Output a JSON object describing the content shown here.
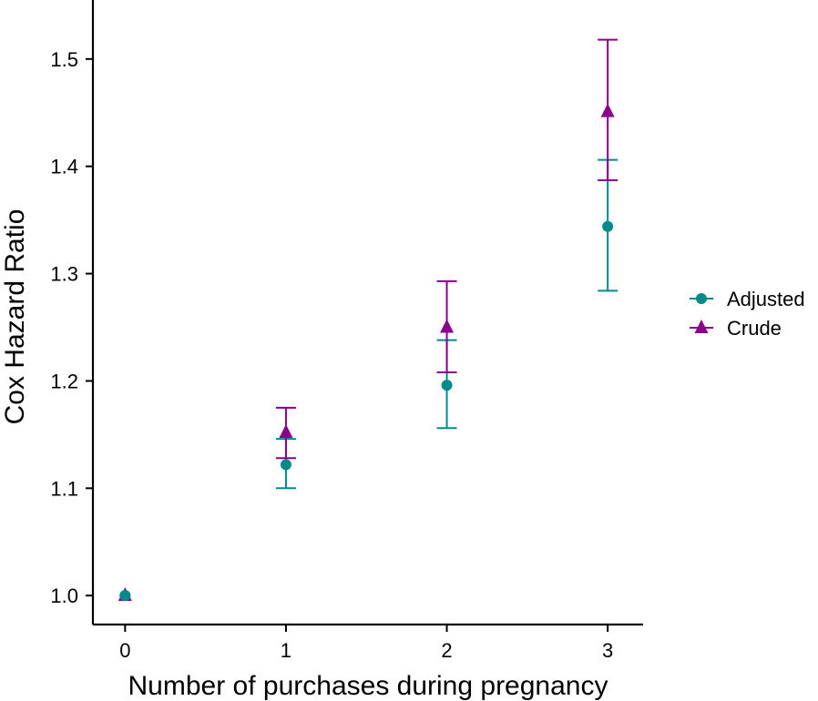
{
  "chart_data": {
    "type": "scatter",
    "title": "",
    "xlabel": "Number of purchases during pregnancy",
    "ylabel": "Cox Hazard Ratio",
    "x_ticks": [
      0,
      1,
      2,
      3
    ],
    "x_tick_labels": [
      "0",
      "1",
      "2",
      "3"
    ],
    "y_ticks": [
      1.0,
      1.1,
      1.2,
      1.3,
      1.4,
      1.5
    ],
    "y_tick_labels": [
      "1.0",
      "1.1",
      "1.2",
      "1.3",
      "1.4",
      "1.5"
    ],
    "xlim": [
      -0.2,
      3.22
    ],
    "ylim": [
      0.973,
      1.555
    ],
    "grid": false,
    "legend_position": "right",
    "series": [
      {
        "name": "Adjusted",
        "marker": "circle",
        "color": "#008B8B",
        "x": [
          0,
          1,
          2,
          3
        ],
        "y": [
          1.0,
          1.122,
          1.196,
          1.344
        ],
        "lower": [
          1.0,
          1.1,
          1.156,
          1.284
        ],
        "upper": [
          1.0,
          1.146,
          1.238,
          1.406
        ]
      },
      {
        "name": "Crude",
        "marker": "triangle",
        "color": "#8B008B",
        "x": [
          0,
          1,
          2,
          3
        ],
        "y": [
          1.0,
          1.152,
          1.25,
          1.451
        ],
        "lower": [
          1.0,
          1.128,
          1.208,
          1.387
        ],
        "upper": [
          1.0,
          1.175,
          1.293,
          1.518
        ]
      }
    ]
  }
}
